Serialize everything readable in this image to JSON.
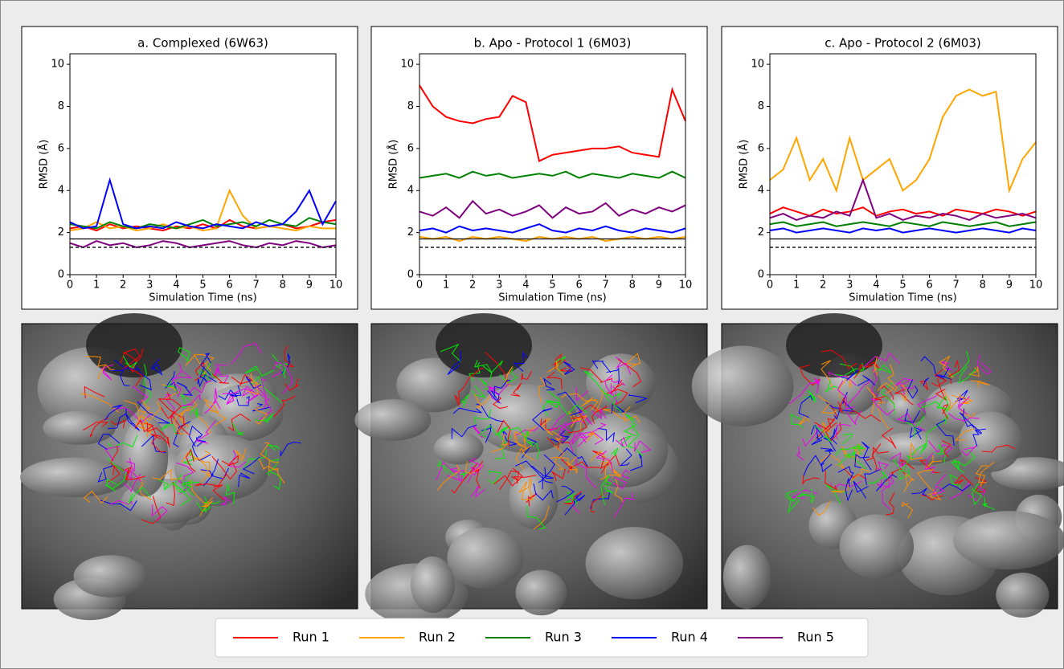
{
  "chart_data": [
    {
      "type": "line",
      "title": "a. Complexed (6W63)",
      "xlabel": "Simulation Time (ns)",
      "ylabel": "RMSD (Å)",
      "x": [
        0,
        0.5,
        1,
        1.5,
        2,
        2.5,
        3,
        3.5,
        4,
        4.5,
        5,
        5.5,
        6,
        6.5,
        7,
        7.5,
        8,
        8.5,
        9,
        9.5,
        10
      ],
      "xlim": [
        0,
        10
      ],
      "xticks": [
        0,
        1,
        2,
        3,
        4,
        5,
        6,
        7,
        8,
        9,
        10
      ],
      "ylim": [
        0,
        10.5
      ],
      "yticks": [
        0,
        2,
        4,
        6,
        8,
        10
      ],
      "reference_lines": [
        {
          "value": 1.7,
          "color": "#000000",
          "style": "solid"
        },
        {
          "value": 1.3,
          "color": "#000000",
          "style": "dashed"
        }
      ],
      "series": [
        {
          "name": "Run 1",
          "color": "#ff0000",
          "values": [
            2.2,
            2.3,
            2.1,
            2.4,
            2.2,
            2.3,
            2.2,
            2.1,
            2.3,
            2.2,
            2.4,
            2.2,
            2.6,
            2.3,
            2.2,
            2.3,
            2.4,
            2.2,
            2.3,
            2.5,
            2.6
          ]
        },
        {
          "name": "Run 2",
          "color": "#ffa500",
          "values": [
            2.1,
            2.2,
            2.5,
            2.2,
            2.3,
            2.1,
            2.2,
            2.4,
            2.2,
            2.3,
            2.1,
            2.2,
            4.0,
            2.8,
            2.2,
            2.3,
            2.2,
            2.1,
            2.3,
            2.2,
            2.2
          ]
        },
        {
          "name": "Run 3",
          "color": "#008000",
          "values": [
            2.4,
            2.3,
            2.2,
            2.5,
            2.3,
            2.2,
            2.4,
            2.3,
            2.2,
            2.4,
            2.6,
            2.3,
            2.4,
            2.5,
            2.3,
            2.6,
            2.4,
            2.3,
            2.7,
            2.5,
            2.4
          ]
        },
        {
          "name": "Run 4",
          "color": "#0000ff",
          "values": [
            2.5,
            2.2,
            2.3,
            4.5,
            2.4,
            2.2,
            2.3,
            2.2,
            2.5,
            2.3,
            2.2,
            2.4,
            2.3,
            2.2,
            2.5,
            2.3,
            2.4,
            3.0,
            4.0,
            2.4,
            3.5
          ]
        },
        {
          "name": "Run 5",
          "color": "#800080",
          "values": [
            1.5,
            1.3,
            1.6,
            1.4,
            1.5,
            1.3,
            1.4,
            1.6,
            1.5,
            1.3,
            1.4,
            1.5,
            1.6,
            1.4,
            1.3,
            1.5,
            1.4,
            1.6,
            1.5,
            1.3,
            1.4
          ]
        }
      ]
    },
    {
      "type": "line",
      "title": "b. Apo - Protocol 1 (6M03)",
      "xlabel": "Simulation Time (ns)",
      "ylabel": "RMSD (Å)",
      "x": [
        0,
        0.5,
        1,
        1.5,
        2,
        2.5,
        3,
        3.5,
        4,
        4.5,
        5,
        5.5,
        6,
        6.5,
        7,
        7.5,
        8,
        8.5,
        9,
        9.5,
        10
      ],
      "xlim": [
        0,
        10
      ],
      "xticks": [
        0,
        1,
        2,
        3,
        4,
        5,
        6,
        7,
        8,
        9,
        10
      ],
      "ylim": [
        0,
        10.5
      ],
      "yticks": [
        0,
        2,
        4,
        6,
        8,
        10
      ],
      "reference_lines": [
        {
          "value": 1.7,
          "color": "#000000",
          "style": "solid"
        },
        {
          "value": 1.3,
          "color": "#000000",
          "style": "dashed"
        }
      ],
      "series": [
        {
          "name": "Run 1",
          "color": "#ff0000",
          "values": [
            9.0,
            8.0,
            7.5,
            7.3,
            7.2,
            7.4,
            7.5,
            8.5,
            8.2,
            5.4,
            5.7,
            5.8,
            5.9,
            6.0,
            6.0,
            6.1,
            5.8,
            5.7,
            5.6,
            8.8,
            7.3
          ]
        },
        {
          "name": "Run 2",
          "color": "#ffa500",
          "values": [
            1.8,
            1.7,
            1.8,
            1.6,
            1.8,
            1.7,
            1.8,
            1.7,
            1.6,
            1.8,
            1.7,
            1.8,
            1.7,
            1.8,
            1.6,
            1.7,
            1.8,
            1.7,
            1.8,
            1.7,
            1.8
          ]
        },
        {
          "name": "Run 3",
          "color": "#008000",
          "values": [
            4.6,
            4.7,
            4.8,
            4.6,
            4.9,
            4.7,
            4.8,
            4.6,
            4.7,
            4.8,
            4.7,
            4.9,
            4.6,
            4.8,
            4.7,
            4.6,
            4.8,
            4.7,
            4.6,
            4.9,
            4.6
          ]
        },
        {
          "name": "Run 4",
          "color": "#0000ff",
          "values": [
            2.1,
            2.2,
            2.0,
            2.3,
            2.1,
            2.2,
            2.1,
            2.0,
            2.2,
            2.4,
            2.1,
            2.0,
            2.2,
            2.1,
            2.3,
            2.1,
            2.0,
            2.2,
            2.1,
            2.0,
            2.2
          ]
        },
        {
          "name": "Run 5",
          "color": "#800080",
          "values": [
            3.0,
            2.8,
            3.2,
            2.7,
            3.5,
            2.9,
            3.1,
            2.8,
            3.0,
            3.3,
            2.7,
            3.2,
            2.9,
            3.0,
            3.4,
            2.8,
            3.1,
            2.9,
            3.2,
            3.0,
            3.3
          ]
        }
      ]
    },
    {
      "type": "line",
      "title": "c. Apo - Protocol 2 (6M03)",
      "xlabel": "Simulation Time (ns)",
      "ylabel": "RMSD (Å)",
      "x": [
        0,
        0.5,
        1,
        1.5,
        2,
        2.5,
        3,
        3.5,
        4,
        4.5,
        5,
        5.5,
        6,
        6.5,
        7,
        7.5,
        8,
        8.5,
        9,
        9.5,
        10
      ],
      "xlim": [
        0,
        10
      ],
      "xticks": [
        0,
        1,
        2,
        3,
        4,
        5,
        6,
        7,
        8,
        9,
        10
      ],
      "ylim": [
        0,
        10.5
      ],
      "yticks": [
        0,
        2,
        4,
        6,
        8,
        10
      ],
      "reference_lines": [
        {
          "value": 1.7,
          "color": "#000000",
          "style": "solid"
        },
        {
          "value": 1.3,
          "color": "#000000",
          "style": "dashed"
        }
      ],
      "series": [
        {
          "name": "Run 1",
          "color": "#ff0000",
          "values": [
            2.9,
            3.2,
            3.0,
            2.8,
            3.1,
            2.9,
            3.0,
            3.2,
            2.8,
            3.0,
            3.1,
            2.9,
            3.0,
            2.8,
            3.1,
            3.0,
            2.9,
            3.1,
            3.0,
            2.8,
            3.0
          ]
        },
        {
          "name": "Run 2",
          "color": "#ffa500",
          "values": [
            4.5,
            5.0,
            6.5,
            4.5,
            5.5,
            4.0,
            6.5,
            4.5,
            5.0,
            5.5,
            4.0,
            4.5,
            5.5,
            7.5,
            8.5,
            8.8,
            8.5,
            8.7,
            4.0,
            5.5,
            6.3
          ]
        },
        {
          "name": "Run 3",
          "color": "#008000",
          "values": [
            2.4,
            2.5,
            2.3,
            2.4,
            2.5,
            2.3,
            2.4,
            2.5,
            2.4,
            2.3,
            2.5,
            2.4,
            2.3,
            2.5,
            2.4,
            2.3,
            2.4,
            2.5,
            2.3,
            2.4,
            2.5
          ]
        },
        {
          "name": "Run 4",
          "color": "#0000ff",
          "values": [
            2.1,
            2.2,
            2.0,
            2.1,
            2.2,
            2.1,
            2.0,
            2.2,
            2.1,
            2.2,
            2.0,
            2.1,
            2.2,
            2.1,
            2.0,
            2.1,
            2.2,
            2.1,
            2.0,
            2.2,
            2.1
          ]
        },
        {
          "name": "Run 5",
          "color": "#800080",
          "values": [
            2.7,
            2.9,
            2.6,
            2.8,
            2.7,
            3.0,
            2.8,
            4.5,
            2.7,
            2.9,
            2.6,
            2.8,
            2.7,
            2.9,
            2.8,
            2.6,
            2.9,
            2.7,
            2.8,
            2.9,
            2.7
          ]
        }
      ]
    }
  ]
}
